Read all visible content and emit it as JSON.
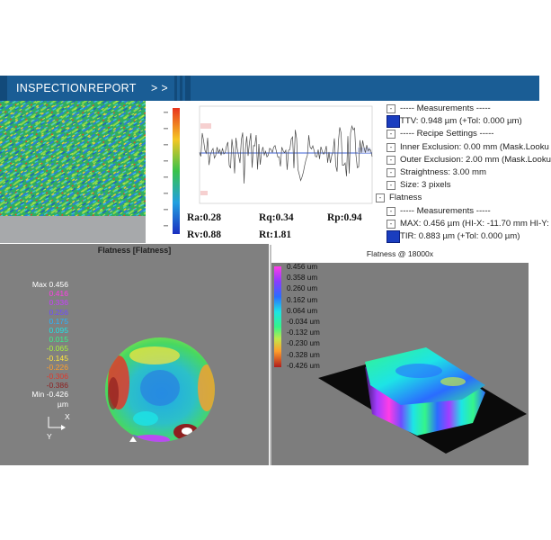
{
  "header": {
    "inspection_label": "INSPECTION",
    "report_label": "REPORT",
    "arrows_label": "> >",
    "bg_color": "#1a5d95"
  },
  "profile": {
    "stats": {
      "ra": "Ra:0.28",
      "rq": "Rq:0.34",
      "rp": "Rp:0.94",
      "rv": "Rv:0.88",
      "rt": "Rt:1.81"
    }
  },
  "tree": {
    "items": [
      {
        "label": "----- Measurements -----",
        "marker": "-",
        "icon": "none",
        "indent": 1
      },
      {
        "label": "TTV: 0.948 µm (+Tol: 0.000 µm)",
        "marker": "",
        "icon": "ttv-icon",
        "indent": 1
      },
      {
        "label": "----- Recipe Settings -----",
        "marker": "-",
        "icon": "none",
        "indent": 1
      },
      {
        "label": "Inner Exclusion: 0.00 mm (Mask.Looku",
        "marker": "-",
        "icon": "none",
        "indent": 1
      },
      {
        "label": "Outer Exclusion: 2.00 mm (Mask.Looku",
        "marker": "-",
        "icon": "none",
        "indent": 1
      },
      {
        "label": "Straightness: 3.00 mm",
        "marker": "-",
        "icon": "none",
        "indent": 1
      },
      {
        "label": "Size: 3 pixels",
        "marker": "-",
        "icon": "none",
        "indent": 1
      },
      {
        "label": "Flatness",
        "marker": "-",
        "icon": "none",
        "indent": 0
      },
      {
        "label": "----- Measurements -----",
        "marker": "-",
        "icon": "none",
        "indent": 1
      },
      {
        "label": "MAX: 0.456 µm (HI-X: -11.70 mm HI-Y:",
        "marker": "-",
        "icon": "none",
        "indent": 1
      },
      {
        "label": "TIR: 0.883 µm (+Tol: 0.000 µm)",
        "marker": "",
        "icon": "tir-icon",
        "indent": 1
      }
    ]
  },
  "flat2d": {
    "title": "Flatness [Flatness]",
    "legend": [
      {
        "text": "Max 0.456",
        "color": "#ffffff"
      },
      {
        "text": "0.416",
        "color": "#ff3de6"
      },
      {
        "text": "0.336",
        "color": "#c83cff"
      },
      {
        "text": "0.256",
        "color": "#6f4cff"
      },
      {
        "text": "0.175",
        "color": "#27b5ff"
      },
      {
        "text": "0.095",
        "color": "#1de4e6"
      },
      {
        "text": "0.015",
        "color": "#35f58a"
      },
      {
        "text": "-0.065",
        "color": "#a9f53a"
      },
      {
        "text": "-0.145",
        "color": "#ffe53a"
      },
      {
        "text": "-0.226",
        "color": "#ff9e2b"
      },
      {
        "text": "-0.306",
        "color": "#e0382b"
      },
      {
        "text": "-0.386",
        "color": "#8f1f1f"
      },
      {
        "text": "Min -0.426",
        "color": "#ffffff"
      },
      {
        "text": "µm",
        "color": "#ffffff"
      }
    ],
    "axis_x": "X",
    "axis_y": "Y"
  },
  "flat3d": {
    "title": "Flatness @ 18000x",
    "colorbar": [
      "0.456 um",
      "0.358 um",
      "0.260 um",
      "0.162 um",
      "0.064 um",
      "-0.034 um",
      "-0.132 um",
      "-0.230 um",
      "-0.328 um",
      "-0.426 um"
    ]
  }
}
